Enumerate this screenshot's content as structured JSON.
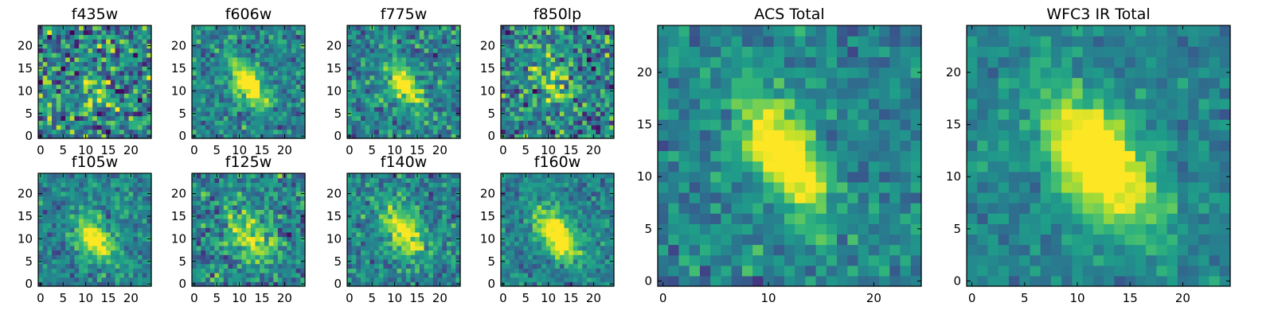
{
  "chart_data": {
    "type": "heatmap",
    "colormap": "viridis",
    "panels": [
      {
        "title": "f435w",
        "xlim": [
          -0.5,
          24.5
        ],
        "ylim": [
          -0.5,
          24.5
        ],
        "xticks": [
          0,
          5,
          10,
          15,
          20
        ],
        "yticks": [
          0,
          5,
          10,
          15,
          20
        ],
        "grid_size": 25,
        "source": {
          "x": 12.0,
          "y": 11.0,
          "sigma_major": 3.5,
          "sigma_minor": 2.0,
          "angle_deg": -55,
          "amplitude": 0.25
        },
        "noise": 0.45,
        "seed": 11
      },
      {
        "title": "f606w",
        "xlim": [
          -0.5,
          24.5
        ],
        "ylim": [
          -0.5,
          24.5
        ],
        "xticks": [
          0,
          5,
          10,
          15,
          20
        ],
        "yticks": [
          0,
          5,
          10,
          15,
          20
        ],
        "grid_size": 25,
        "source": {
          "x": 12.0,
          "y": 11.5,
          "sigma_major": 4.0,
          "sigma_minor": 1.8,
          "angle_deg": -55,
          "amplitude": 0.75
        },
        "noise": 0.25,
        "seed": 23
      },
      {
        "title": "f775w",
        "xlim": [
          -0.5,
          24.5
        ],
        "ylim": [
          -0.5,
          24.5
        ],
        "xticks": [
          0,
          5,
          10,
          15,
          20
        ],
        "yticks": [
          0,
          5,
          10,
          15,
          20
        ],
        "grid_size": 25,
        "source": {
          "x": 12.0,
          "y": 11.5,
          "sigma_major": 4.0,
          "sigma_minor": 1.8,
          "angle_deg": -55,
          "amplitude": 0.65
        },
        "noise": 0.28,
        "seed": 37
      },
      {
        "title": "f850lp",
        "xlim": [
          -0.5,
          24.5
        ],
        "ylim": [
          -0.5,
          24.5
        ],
        "xticks": [
          0,
          5,
          10,
          15,
          20
        ],
        "yticks": [
          0,
          5,
          10,
          15,
          20
        ],
        "grid_size": 25,
        "source": {
          "x": 11.0,
          "y": 12.0,
          "sigma_major": 3.5,
          "sigma_minor": 2.0,
          "angle_deg": -55,
          "amplitude": 0.4
        },
        "noise": 0.38,
        "seed": 41
      },
      {
        "title": "f105w",
        "xlim": [
          -0.5,
          24.5
        ],
        "ylim": [
          -0.5,
          24.5
        ],
        "xticks": [
          0,
          5,
          10,
          15,
          20
        ],
        "yticks": [
          0,
          5,
          10,
          15,
          20
        ],
        "grid_size": 25,
        "source": {
          "x": 12.0,
          "y": 10.0,
          "sigma_major": 3.5,
          "sigma_minor": 2.2,
          "angle_deg": -55,
          "amplitude": 0.7
        },
        "noise": 0.22,
        "seed": 53
      },
      {
        "title": "f125w",
        "xlim": [
          -0.5,
          24.5
        ],
        "ylim": [
          -0.5,
          24.5
        ],
        "xticks": [
          0,
          5,
          10,
          15,
          20
        ],
        "yticks": [
          0,
          5,
          10,
          15,
          20
        ],
        "grid_size": 25,
        "source": {
          "x": 12.0,
          "y": 11.0,
          "sigma_major": 5.0,
          "sigma_minor": 3.0,
          "angle_deg": -60,
          "amplitude": 0.45
        },
        "noise": 0.3,
        "seed": 67
      },
      {
        "title": "f140w",
        "xlim": [
          -0.5,
          24.5
        ],
        "ylim": [
          -0.5,
          24.5
        ],
        "xticks": [
          0,
          5,
          10,
          15,
          20
        ],
        "yticks": [
          0,
          5,
          10,
          15,
          20
        ],
        "grid_size": 25,
        "source": {
          "x": 12.0,
          "y": 11.5,
          "sigma_major": 4.5,
          "sigma_minor": 2.5,
          "angle_deg": -58,
          "amplitude": 0.55
        },
        "noise": 0.25,
        "seed": 79
      },
      {
        "title": "f160w",
        "xlim": [
          -0.5,
          24.5
        ],
        "ylim": [
          -0.5,
          24.5
        ],
        "xticks": [
          0,
          5,
          10,
          15,
          20
        ],
        "yticks": [
          0,
          5,
          10,
          15,
          20
        ],
        "grid_size": 25,
        "source": {
          "x": 12.0,
          "y": 11.0,
          "sigma_major": 4.5,
          "sigma_minor": 2.2,
          "angle_deg": -55,
          "amplitude": 0.75
        },
        "noise": 0.2,
        "seed": 83
      },
      {
        "title": "ACS Total",
        "xlim": [
          -0.5,
          24.5
        ],
        "ylim": [
          -0.5,
          24.5
        ],
        "xticks": [
          0,
          10,
          20
        ],
        "yticks": [
          0,
          5,
          10,
          15,
          20
        ],
        "grid_size": 25,
        "source": {
          "x": 11.5,
          "y": 12.0,
          "sigma_major": 4.2,
          "sigma_minor": 1.8,
          "angle_deg": -58,
          "amplitude": 0.8
        },
        "noise": 0.2,
        "seed": 97
      },
      {
        "title": "WFC3 IR Total",
        "xlim": [
          -0.5,
          24.5
        ],
        "ylim": [
          -0.5,
          24.5
        ],
        "xticks": [
          0,
          5,
          10,
          15,
          20
        ],
        "yticks": [
          0,
          5,
          10,
          15,
          20
        ],
        "grid_size": 25,
        "source": {
          "x": 12.0,
          "y": 11.5,
          "sigma_major": 5.0,
          "sigma_minor": 2.6,
          "angle_deg": -55,
          "amplitude": 0.85
        },
        "noise": 0.15,
        "seed": 101
      }
    ]
  }
}
